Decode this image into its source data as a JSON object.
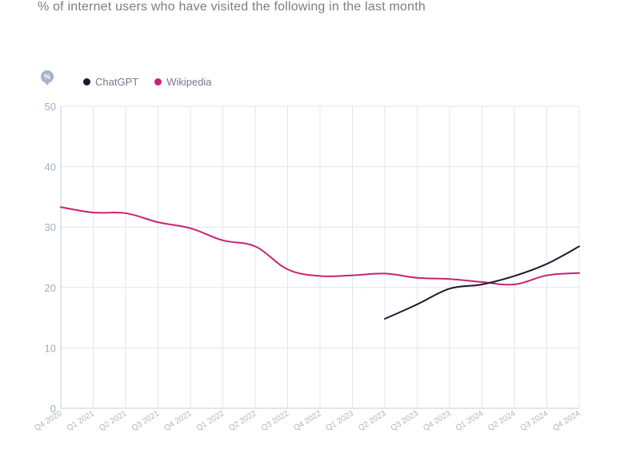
{
  "chart_data": {
    "type": "line",
    "title": "% of internet users who have visited the following in the last month",
    "unit_badge": "%",
    "categories": [
      "Q4 2020",
      "Q1 2021",
      "Q2 2021",
      "Q3 2021",
      "Q4 2021",
      "Q1 2022",
      "Q2 2022",
      "Q3 2022",
      "Q4 2022",
      "Q1 2023",
      "Q2 2023",
      "Q3 2023",
      "Q4 2023",
      "Q1 2024",
      "Q2 2024",
      "Q3 2024",
      "Q4 2024"
    ],
    "ylim": [
      0,
      50
    ],
    "yticks": [
      0,
      10,
      20,
      30,
      40,
      50
    ],
    "grid": true,
    "legend_position": "top-left",
    "series": [
      {
        "name": "ChatGPT",
        "color": "#1c1a2e",
        "values": [
          null,
          null,
          null,
          null,
          null,
          null,
          null,
          null,
          null,
          null,
          14.8,
          17.2,
          19.8,
          20.5,
          21.9,
          23.9,
          26.8
        ]
      },
      {
        "name": "Wikipedia",
        "color": "#c8236f",
        "values": [
          33.3,
          32.4,
          32.3,
          30.8,
          29.8,
          27.8,
          26.8,
          23.0,
          21.9,
          22.0,
          22.3,
          21.6,
          21.4,
          20.9,
          20.5,
          22.0,
          22.4
        ]
      }
    ]
  }
}
